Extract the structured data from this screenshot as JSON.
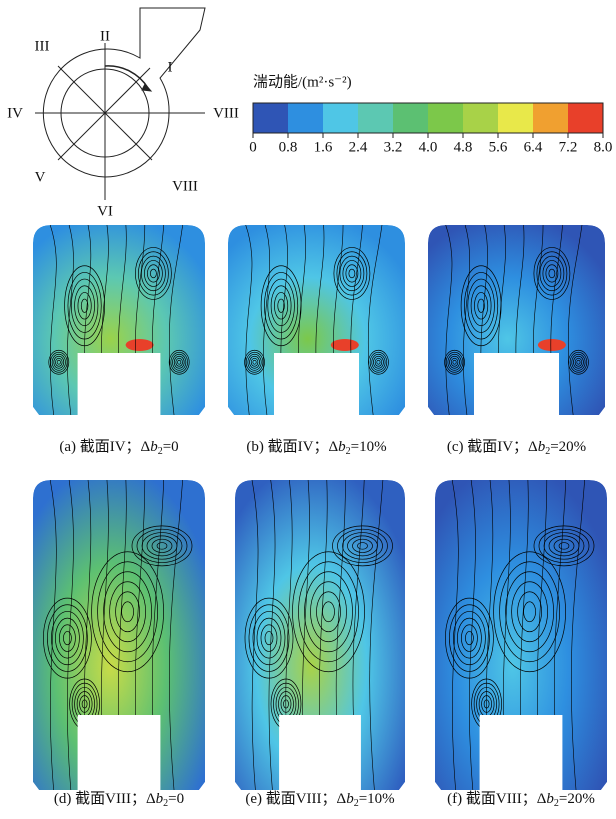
{
  "diagram": {
    "labels": [
      "II",
      "III",
      "I",
      "IV",
      "VIII",
      "V",
      "VI",
      "VIII"
    ]
  },
  "colorbar": {
    "title": "湍动能/(m²·s⁻²)",
    "tick_labels": [
      "0",
      "0.8",
      "1.6",
      "2.4",
      "3.2",
      "4.0",
      "4.8",
      "5.6",
      "6.4",
      "7.2",
      "8.0"
    ],
    "colors": [
      "#2f55b5",
      "#2e8fe0",
      "#4fc6e6",
      "#5cc8b2",
      "#5cc072",
      "#7cc84a",
      "#a8d248",
      "#e8e84a",
      "#f0a030",
      "#e8402a"
    ]
  },
  "panels": [
    {
      "prefix": "(a) 截面IV；Δ",
      "var": "b",
      "sub": "2",
      "rest": "=0"
    },
    {
      "prefix": "(b) 截面IV；Δ",
      "var": "b",
      "sub": "2",
      "rest": "=10%"
    },
    {
      "prefix": "(c) 截面IV；Δ",
      "var": "b",
      "sub": "2",
      "rest": "=20%"
    },
    {
      "prefix": "(d) 截面VIII；Δ",
      "var": "b",
      "sub": "2",
      "rest": "=0"
    },
    {
      "prefix": "(e) 截面VIII；Δ",
      "var": "b",
      "sub": "2",
      "rest": "=10%"
    },
    {
      "prefix": "(f) 截面VIII；Δ",
      "var": "b",
      "sub": "2",
      "rest": "=20%"
    }
  ]
}
